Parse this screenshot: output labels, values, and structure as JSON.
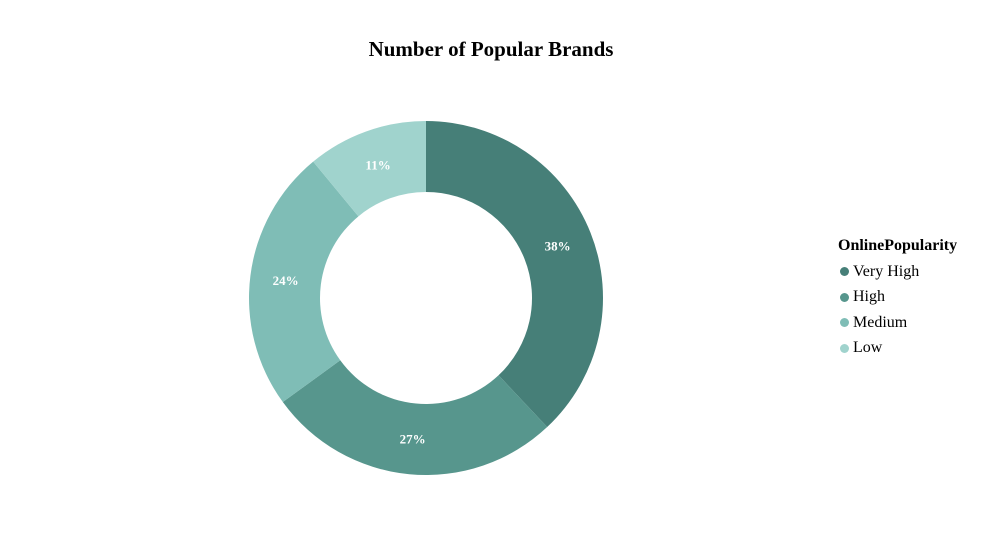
{
  "chart_data": {
    "type": "pie",
    "donut": true,
    "title": "Number of Popular Brands",
    "legend_title": "OnlinePopularity",
    "legend_position": "right",
    "series": [
      {
        "name": "Very High",
        "value": 38,
        "label": "38%",
        "color": "#467f78"
      },
      {
        "name": "High",
        "value": 27,
        "label": "27%",
        "color": "#57968d"
      },
      {
        "name": "Medium",
        "value": 24,
        "label": "24%",
        "color": "#7fbdb6"
      },
      {
        "name": "Low",
        "value": 11,
        "label": "11%",
        "color": "#a0d3cd"
      }
    ]
  }
}
